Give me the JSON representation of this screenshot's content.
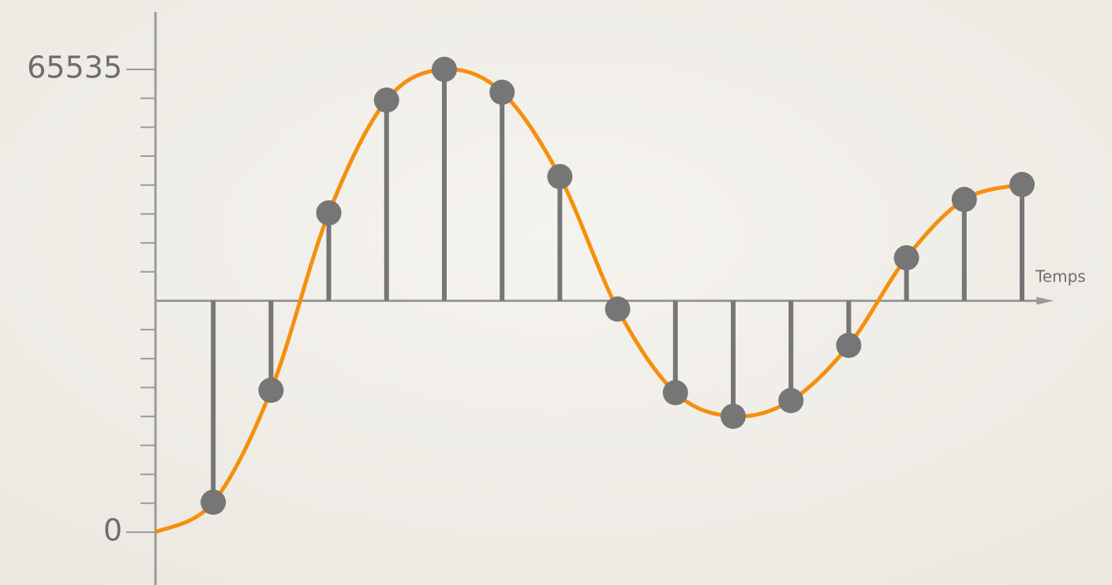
{
  "chart_data": {
    "type": "stem",
    "x_label": "Temps",
    "x": [
      0,
      1,
      2,
      3,
      4,
      5,
      6,
      7,
      8,
      9,
      10,
      11,
      12,
      13,
      14,
      15
    ],
    "values": [
      0,
      4242,
      20095,
      45214,
      61179,
      65535,
      62295,
      50350,
      31594,
      19760,
      16411,
      18644,
      26459,
      38851,
      47112,
      49233
    ],
    "color": "#767676",
    "line_color": "#f5900c",
    "axis_color": "#9a9a9a",
    "xlim": [
      0,
      15.55
    ],
    "ylim": [
      0,
      65535
    ],
    "yticks": [
      0,
      65535
    ],
    "yminorticks": [
      4096,
      8192,
      12288,
      16384,
      20480,
      24576,
      28672,
      36864,
      40960,
      45056,
      49152,
      53248,
      57344,
      61440
    ]
  }
}
